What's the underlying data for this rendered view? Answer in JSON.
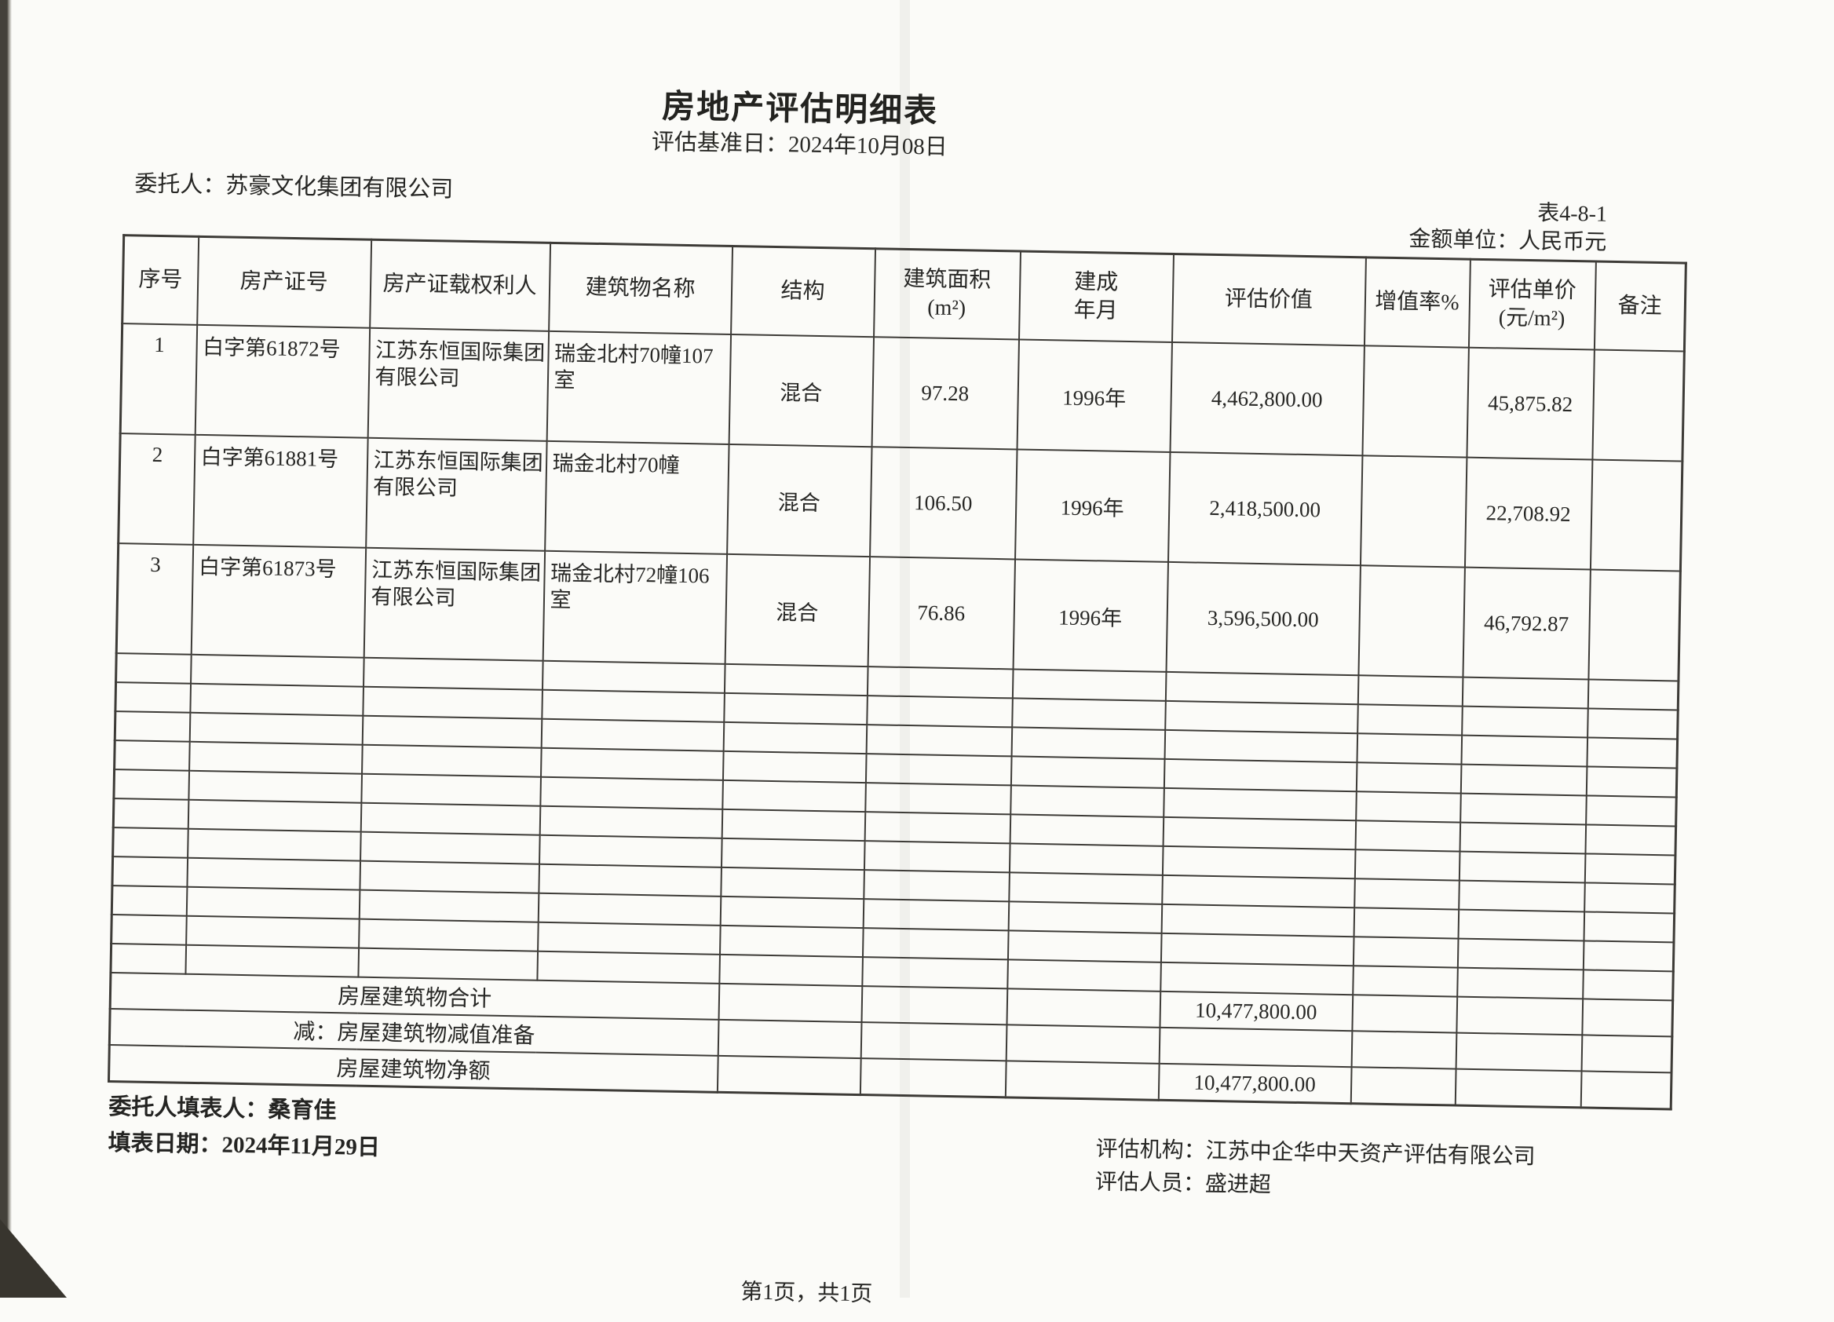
{
  "page": {
    "title": "房地产评估明细表",
    "base_date_line": "评估基准日：2024年10月08日",
    "client_line": "委托人：苏豪文化集团有限公司",
    "table_number": "表4-8-1",
    "amount_unit_line": "金额单位：人民币元",
    "page_footer": "第1页，共1页"
  },
  "table": {
    "headers": [
      "序号",
      "房产证号",
      "房产证载权利人",
      "建筑物名称",
      "结构",
      "建筑面积\n(m²)",
      "建成\n年月",
      "评估价值",
      "增值率%",
      "评估单价\n(元/m²)",
      "备注"
    ],
    "rows": [
      {
        "no": "1",
        "cert_no": "白字第61872号",
        "owner": "江苏东恒国际集团有限公司",
        "building": "瑞金北村70幢107室",
        "structure": "混合",
        "area": "97.28",
        "built": "1996年",
        "value": "4,462,800.00",
        "rate": "",
        "unit_price": "45,875.82",
        "remark": ""
      },
      {
        "no": "2",
        "cert_no": "白字第61881号",
        "owner": "江苏东恒国际集团有限公司",
        "building": "瑞金北村70幢",
        "structure": "混合",
        "area": "106.50",
        "built": "1996年",
        "value": "2,418,500.00",
        "rate": "",
        "unit_price": "22,708.92",
        "remark": ""
      },
      {
        "no": "3",
        "cert_no": "白字第61873号",
        "owner": "江苏东恒国际集团有限公司",
        "building": "瑞金北村72幢106室",
        "structure": "混合",
        "area": "76.86",
        "built": "1996年",
        "value": "3,596,500.00",
        "rate": "",
        "unit_price": "46,792.87",
        "remark": ""
      }
    ],
    "empty_row_count": 11,
    "summary_rows": [
      {
        "label": "房屋建筑物合计",
        "value": "10,477,800.00"
      },
      {
        "label": "减：房屋建筑物减值准备",
        "value": ""
      },
      {
        "label": "房屋建筑物净额",
        "value": "10,477,800.00"
      }
    ]
  },
  "signoff": {
    "filler_line": "委托人填表人：桑育佳",
    "fill_date_line": "填表日期：2024年11月29日",
    "agency_line": "评估机构：江苏中企华中天资产评估有限公司",
    "staff_line": "评估人员：盛进超"
  }
}
